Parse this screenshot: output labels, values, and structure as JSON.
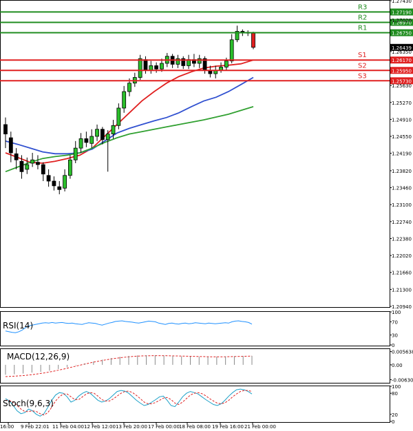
{
  "chart_data": {
    "type": "candlestick",
    "main": {
      "ylim": [
        1.2094,
        1.2743
      ],
      "y_ticks": [
        "1.27430",
        "1.27020",
        "1.26350",
        "1.25630",
        "1.25270",
        "1.24910",
        "1.24550",
        "1.24190",
        "1.23820",
        "1.23460",
        "1.23100",
        "1.22740",
        "1.22380",
        "1.22020",
        "1.21660",
        "1.21300",
        "1.20940"
      ],
      "price_marker": {
        "label": "1.26439",
        "value": 1.26439
      },
      "levels": [
        {
          "name": "R3",
          "price_label": "1.27190",
          "value": 1.2719,
          "color": "#1f8c1f"
        },
        {
          "name": "R2",
          "price_label": "1.26970",
          "value": 1.2697,
          "color": "#1f8c1f"
        },
        {
          "name": "R1",
          "price_label": "1.26750",
          "value": 1.2675,
          "color": "#1f8c1f"
        },
        {
          "name": "S1",
          "price_label": "1.26170",
          "value": 1.2617,
          "color": "#e02020"
        },
        {
          "name": "S2",
          "price_label": "1.25950",
          "value": 1.2595,
          "color": "#e02020"
        },
        {
          "name": "S3",
          "price_label": "1.25730",
          "value": 1.2573,
          "color": "#e02020"
        }
      ],
      "candles": [
        [
          1.248,
          1.246,
          1.2495,
          1.243
        ],
        [
          1.2452,
          1.242,
          1.2465,
          1.24
        ],
        [
          1.2418,
          1.2405,
          1.243,
          1.2385
        ],
        [
          1.2402,
          1.238,
          1.2415,
          1.2365
        ],
        [
          1.2385,
          1.2395,
          1.241,
          1.2375
        ],
        [
          1.2398,
          1.2405,
          1.242,
          1.239
        ],
        [
          1.24,
          1.2395,
          1.2415,
          1.2385
        ],
        [
          1.2395,
          1.2375,
          1.24,
          1.236
        ],
        [
          1.2372,
          1.236,
          1.2385,
          1.2348
        ],
        [
          1.236,
          1.235,
          1.237,
          1.234
        ],
        [
          1.2348,
          1.2342,
          1.236,
          1.2332
        ],
        [
          1.2345,
          1.2372,
          1.2385,
          1.2338
        ],
        [
          1.2372,
          1.2405,
          1.2415,
          1.2365
        ],
        [
          1.2405,
          1.243,
          1.2445,
          1.2398
        ],
        [
          1.243,
          1.245,
          1.2462,
          1.242
        ],
        [
          1.245,
          1.2442,
          1.2465,
          1.2432
        ],
        [
          1.244,
          1.2455,
          1.247,
          1.243
        ],
        [
          1.2455,
          1.247,
          1.248,
          1.2445
        ],
        [
          1.247,
          1.2448,
          1.2475,
          1.2438
        ],
        [
          1.2448,
          1.246,
          1.2468,
          1.238
        ],
        [
          1.246,
          1.2478,
          1.249,
          1.245
        ],
        [
          1.2478,
          1.2515,
          1.2525,
          1.247
        ],
        [
          1.2515,
          1.255,
          1.2562,
          1.2505
        ],
        [
          1.255,
          1.2568,
          1.2578,
          1.254
        ],
        [
          1.2568,
          1.258,
          1.259,
          1.256
        ],
        [
          1.258,
          1.262,
          1.2628,
          1.2575
        ],
        [
          1.2618,
          1.2595,
          1.2625,
          1.2588
        ],
        [
          1.2595,
          1.2605,
          1.2615,
          1.2588
        ],
        [
          1.2605,
          1.2598,
          1.2612,
          1.259
        ],
        [
          1.2598,
          1.261,
          1.262,
          1.2592
        ],
        [
          1.261,
          1.2625,
          1.2632,
          1.2602
        ],
        [
          1.2625,
          1.2608,
          1.263,
          1.26
        ],
        [
          1.2608,
          1.262,
          1.2628,
          1.26
        ],
        [
          1.262,
          1.2605,
          1.2625,
          1.2598
        ],
        [
          1.2605,
          1.2618,
          1.2628,
          1.2598
        ],
        [
          1.2618,
          1.261,
          1.263,
          1.2602
        ],
        [
          1.261,
          1.262,
          1.2628,
          1.26
        ],
        [
          1.262,
          1.2595,
          1.2625,
          1.2588
        ],
        [
          1.2595,
          1.2588,
          1.2605,
          1.258
        ],
        [
          1.2588,
          1.2595,
          1.2605,
          1.2578
        ],
        [
          1.2595,
          1.2602,
          1.2612,
          1.259
        ],
        [
          1.2602,
          1.2615,
          1.2622,
          1.2595
        ],
        [
          1.2615,
          1.266,
          1.2672,
          1.261
        ],
        [
          1.266,
          1.2678,
          1.269,
          1.2655
        ],
        [
          1.2678,
          1.2676,
          1.2682,
          1.2668
        ],
        [
          1.2676,
          1.2674,
          1.268,
          1.2668
        ],
        [
          1.2674,
          1.2644,
          1.2677,
          1.264
        ]
      ],
      "moving_averages": [
        {
          "color": "#e02020",
          "values": [
            1.242,
            1.241,
            1.24,
            1.2398,
            1.2402,
            1.2408,
            1.2415,
            1.243,
            1.2455,
            1.248,
            1.2505,
            1.253,
            1.255,
            1.2568,
            1.2582,
            1.2592,
            1.26,
            1.2604,
            1.2606,
            1.2609,
            1.2617
          ]
        },
        {
          "color": "#3050d0",
          "values": [
            1.2445,
            1.2438,
            1.243,
            1.2422,
            1.2418,
            1.2418,
            1.242,
            1.2428,
            1.2445,
            1.2462,
            1.2472,
            1.248,
            1.2488,
            1.2495,
            1.2505,
            1.2518,
            1.253,
            1.2538,
            1.255,
            1.2565,
            1.258
          ]
        },
        {
          "color": "#30a030",
          "values": [
            1.238,
            1.239,
            1.24,
            1.2408,
            1.2412,
            1.2415,
            1.242,
            1.243,
            1.2442,
            1.2452,
            1.246,
            1.2465,
            1.247,
            1.2475,
            1.248,
            1.2485,
            1.249,
            1.2496,
            1.2502,
            1.251,
            1.2518
          ]
        }
      ]
    },
    "rsi": {
      "label": "RSI(14)",
      "ylim": [
        0,
        100
      ],
      "y_ticks": [
        "100",
        "70",
        "30",
        "0"
      ],
      "tick_values": [
        100,
        70,
        30,
        0
      ],
      "values": [
        42,
        40,
        38,
        37,
        40,
        45,
        52,
        58,
        60,
        62,
        64,
        66,
        67,
        66,
        68,
        66,
        67,
        68,
        66,
        65,
        66,
        64,
        63,
        62,
        65,
        67,
        66,
        65,
        62,
        60,
        63,
        66,
        68,
        71,
        72,
        73,
        71,
        70,
        69,
        67,
        66,
        68,
        70,
        72,
        71,
        70,
        66,
        64,
        62,
        65,
        66,
        64,
        63,
        65,
        66,
        64,
        65,
        67,
        66,
        65,
        64,
        66,
        65,
        64,
        65,
        66,
        67,
        66,
        70,
        72,
        73,
        71,
        70,
        68,
        63
      ]
    },
    "macd": {
      "label": "MACD(12,26,9)",
      "ylim": [
        -0.00735,
        0.0067
      ],
      "y_ticks": [
        "0.005638",
        "0.00",
        "-0.006302"
      ],
      "tick_values": [
        0.005638,
        0,
        -0.006302
      ],
      "histogram": [
        -0.0042,
        -0.004,
        -0.0037,
        -0.0033,
        -0.003,
        -0.0025,
        -0.0018,
        -0.001,
        -0.0002,
        0.0006,
        0.0014,
        0.0022,
        0.0029,
        0.0034,
        0.0038,
        0.004,
        0.0041,
        0.0041,
        0.004,
        0.0038,
        0.0036,
        0.0035,
        0.0034,
        0.0034,
        0.0035,
        0.0036,
        0.0037,
        0.0038,
        0.0038
      ],
      "signal": [
        -0.005,
        -0.0048,
        -0.0045,
        -0.004,
        -0.0034,
        -0.0026,
        -0.0017,
        -0.0007,
        0.0003,
        0.0012,
        0.002,
        0.0027,
        0.0032,
        0.0036,
        0.0038,
        0.0039,
        0.0039,
        0.0038,
        0.0037,
        0.0036,
        0.0035,
        0.0034,
        0.0034,
        0.0035,
        0.0036,
        0.0037
      ]
    },
    "stoch": {
      "label": "Stoch(9,6,3)",
      "ylim": [
        0,
        100
      ],
      "y_ticks": [
        "100",
        "80",
        "20",
        "0"
      ],
      "tick_values": [
        100,
        80,
        20,
        0
      ],
      "main_line": [
        65,
        58,
        45,
        30,
        22,
        25,
        35,
        30,
        20,
        15,
        22,
        40,
        60,
        75,
        82,
        80,
        70,
        55,
        60,
        72,
        80,
        85,
        80,
        70,
        60,
        55,
        58,
        65,
        75,
        85,
        88,
        86,
        80,
        70,
        60,
        52,
        45,
        48,
        55,
        62,
        70,
        72,
        60,
        45,
        42,
        55,
        70,
        80,
        85,
        82,
        78,
        70,
        62,
        55,
        48,
        45,
        50,
        60,
        72,
        82,
        90,
        92,
        90,
        85,
        78
      ],
      "signal_line": [
        60,
        60,
        55,
        45,
        35,
        28,
        28,
        30,
        28,
        22,
        18,
        25,
        40,
        58,
        70,
        78,
        78,
        70,
        62,
        62,
        70,
        78,
        82,
        80,
        72,
        62,
        58,
        58,
        64,
        72,
        80,
        85,
        86,
        82,
        74,
        65,
        55,
        50,
        50,
        54,
        60,
        66,
        68,
        62,
        52,
        48,
        55,
        65,
        75,
        80,
        82,
        79,
        73,
        65,
        58,
        52,
        50,
        53,
        60,
        70,
        78,
        85,
        88,
        88,
        85
      ]
    },
    "x_ticks": [
      "16:00",
      "9 Feb 22:01",
      "11 Feb 04:00",
      "12 Feb 12:00",
      "13 Feb 20:00",
      "17 Feb 00:00",
      "18 Feb 08:00",
      "19 Feb 16:00",
      "21 Feb 00:00"
    ]
  }
}
